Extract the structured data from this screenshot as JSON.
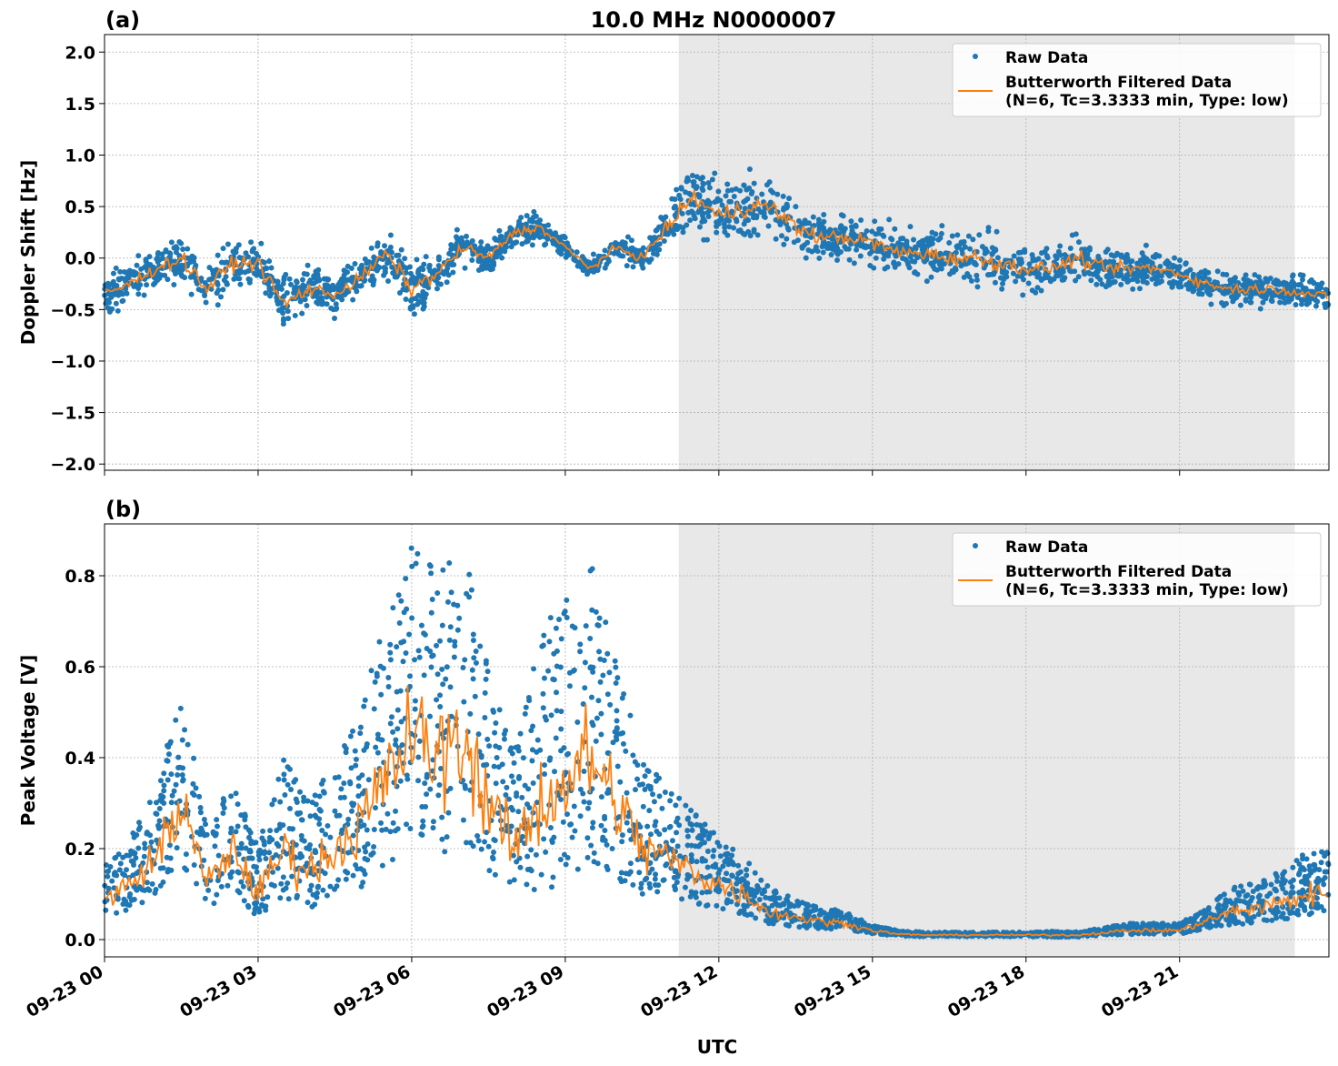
{
  "title": "10.0 MHz N0000007",
  "xlabel": "UTC",
  "colors": {
    "raw": "#1f77b4",
    "filtered": "#ff7f0e",
    "shade": "#e8e8e8"
  },
  "x_ticks": [
    "09-23 00",
    "09-23 03",
    "09-23 06",
    "09-23 09",
    "09-23 12",
    "09-23 15",
    "09-23 18",
    "09-23 21"
  ],
  "legend": {
    "raw": "Raw Data",
    "filtered_line1": "Butterworth Filtered Data",
    "filtered_line2": "(N=6, Tc=3.3333 min, Type: low)"
  },
  "chart_data": [
    {
      "type": "scatter+line",
      "panel_label": "(a)",
      "ylabel": "Doppler Shift [Hz]",
      "xlim": [
        "09-23 00:00",
        "09-23 23:55"
      ],
      "ylim": [
        -2.06,
        2.17
      ],
      "y_ticks": [
        -2.0,
        -1.5,
        -1.0,
        -0.5,
        0.0,
        0.5,
        1.0,
        1.5,
        2.0
      ],
      "y_tick_labels": [
        "−2.0",
        "−1.5",
        "−1.0",
        "−0.5",
        "0.0",
        "0.5",
        "1.0",
        "1.5",
        "2.0"
      ],
      "grid": true,
      "legend_position": "top-right",
      "shaded_span": [
        "09-23 11:13",
        "09-23 23:15"
      ],
      "x": [
        "00:00",
        "00:30",
        "01:00",
        "01:30",
        "02:00",
        "02:30",
        "03:00",
        "03:30",
        "04:00",
        "04:30",
        "05:00",
        "05:30",
        "06:00",
        "06:30",
        "07:00",
        "07:30",
        "08:00",
        "08:30",
        "09:00",
        "09:30",
        "10:00",
        "10:30",
        "11:00",
        "11:30",
        "12:00",
        "12:30",
        "13:00",
        "13:30",
        "14:00",
        "14:30",
        "15:00",
        "15:30",
        "16:00",
        "16:30",
        "17:00",
        "17:30",
        "18:00",
        "18:30",
        "19:00",
        "19:30",
        "20:00",
        "20:30",
        "21:00",
        "21:30",
        "22:00",
        "22:30",
        "23:00",
        "23:30",
        "23:55"
      ],
      "filtered": [
        -0.35,
        -0.25,
        -0.1,
        0.0,
        -0.3,
        -0.05,
        -0.05,
        -0.45,
        -0.3,
        -0.35,
        -0.2,
        0.05,
        -0.3,
        -0.15,
        0.1,
        0.0,
        0.25,
        0.3,
        0.1,
        -0.1,
        0.1,
        0.0,
        0.3,
        0.6,
        0.4,
        0.5,
        0.5,
        0.3,
        0.2,
        0.2,
        0.15,
        0.05,
        0.05,
        0.0,
        0.0,
        -0.05,
        -0.1,
        -0.1,
        0.0,
        -0.1,
        -0.1,
        -0.1,
        -0.15,
        -0.25,
        -0.3,
        -0.3,
        -0.3,
        -0.35,
        -0.38
      ],
      "raw_spread": [
        0.3,
        0.3,
        0.3,
        0.35,
        0.4,
        0.35,
        0.35,
        0.45,
        0.3,
        0.3,
        0.3,
        0.3,
        0.4,
        0.3,
        0.25,
        0.25,
        0.2,
        0.2,
        0.2,
        0.15,
        0.2,
        0.2,
        0.3,
        0.5,
        0.45,
        0.5,
        0.45,
        0.4,
        0.35,
        0.35,
        0.35,
        0.35,
        0.35,
        0.35,
        0.4,
        0.35,
        0.35,
        0.3,
        0.35,
        0.3,
        0.3,
        0.3,
        0.25,
        0.25,
        0.25,
        0.25,
        0.25,
        0.25,
        0.25
      ]
    },
    {
      "type": "scatter+line",
      "panel_label": "(b)",
      "ylabel": "Peak Voltage [V]",
      "xlim": [
        "09-23 00:00",
        "09-23 23:55"
      ],
      "ylim": [
        -0.038,
        0.914
      ],
      "y_ticks": [
        0.0,
        0.2,
        0.4,
        0.6,
        0.8
      ],
      "y_tick_labels": [
        "0.0",
        "0.2",
        "0.4",
        "0.6",
        "0.8"
      ],
      "grid": true,
      "legend_position": "top-right",
      "shaded_span": [
        "09-23 11:13",
        "09-23 23:15"
      ],
      "x": [
        "00:00",
        "00:30",
        "01:00",
        "01:30",
        "02:00",
        "02:30",
        "03:00",
        "03:30",
        "04:00",
        "04:30",
        "05:00",
        "05:30",
        "06:00",
        "06:30",
        "07:00",
        "07:30",
        "08:00",
        "08:30",
        "09:00",
        "09:30",
        "10:00",
        "10:30",
        "11:00",
        "11:30",
        "12:00",
        "12:30",
        "13:00",
        "13:30",
        "14:00",
        "14:30",
        "15:00",
        "15:30",
        "16:00",
        "16:30",
        "17:00",
        "17:30",
        "18:00",
        "18:30",
        "19:00",
        "19:30",
        "20:00",
        "20:30",
        "21:00",
        "21:30",
        "22:00",
        "22:30",
        "23:00",
        "23:30",
        "23:55"
      ],
      "filtered": [
        0.09,
        0.12,
        0.18,
        0.3,
        0.12,
        0.2,
        0.1,
        0.2,
        0.15,
        0.2,
        0.25,
        0.35,
        0.45,
        0.4,
        0.45,
        0.3,
        0.2,
        0.3,
        0.35,
        0.4,
        0.3,
        0.2,
        0.18,
        0.15,
        0.12,
        0.1,
        0.06,
        0.05,
        0.04,
        0.035,
        0.02,
        0.012,
        0.01,
        0.01,
        0.01,
        0.01,
        0.01,
        0.01,
        0.01,
        0.015,
        0.02,
        0.02,
        0.02,
        0.04,
        0.06,
        0.07,
        0.08,
        0.1,
        0.1
      ],
      "raw_spread": [
        0.07,
        0.1,
        0.15,
        0.25,
        0.12,
        0.15,
        0.1,
        0.2,
        0.15,
        0.18,
        0.25,
        0.35,
        0.4,
        0.4,
        0.4,
        0.3,
        0.2,
        0.35,
        0.4,
        0.42,
        0.3,
        0.2,
        0.15,
        0.13,
        0.1,
        0.08,
        0.05,
        0.04,
        0.03,
        0.025,
        0.012,
        0.008,
        0.006,
        0.006,
        0.006,
        0.006,
        0.006,
        0.008,
        0.008,
        0.01,
        0.015,
        0.015,
        0.015,
        0.03,
        0.05,
        0.06,
        0.07,
        0.09,
        0.09
      ]
    }
  ]
}
